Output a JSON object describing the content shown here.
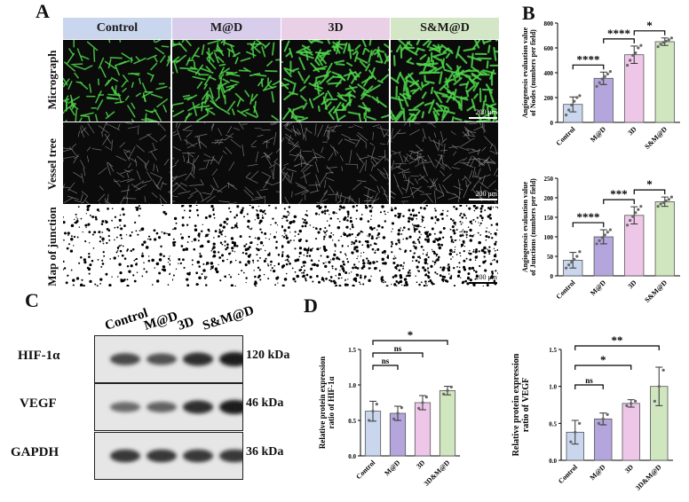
{
  "panels": {
    "a": "A",
    "b": "B",
    "c": "C",
    "d": "D"
  },
  "panel_a": {
    "headers": [
      {
        "label": "Control",
        "color": "#c9d6ee"
      },
      {
        "label": "M@D",
        "color": "#d8cdea"
      },
      {
        "label": "3D",
        "color": "#ead0e6"
      },
      {
        "label": "S&M@D",
        "color": "#d3e7c6"
      }
    ],
    "rows": [
      "Micrograph",
      "Vessel tree",
      "Map of junction"
    ],
    "scale_label": "200 μm",
    "densities": [
      0.45,
      0.6,
      0.85,
      1.0
    ]
  },
  "panel_c": {
    "lanes": [
      "Control",
      "M@D",
      "3D",
      "S&M@D"
    ],
    "proteins": [
      {
        "name": "HIF-1α",
        "kda": "120 kDa",
        "intensity": [
          0.75,
          0.7,
          0.9,
          1.0
        ]
      },
      {
        "name": "VEGF",
        "kda": "46 kDa",
        "intensity": [
          0.55,
          0.6,
          0.9,
          1.0
        ]
      },
      {
        "name": "GAPDH",
        "kda": "36 kDa",
        "intensity": [
          0.85,
          0.85,
          0.85,
          0.85
        ]
      }
    ]
  },
  "chart_data": [
    {
      "type": "bar",
      "panel": "B",
      "categories": [
        "Control",
        "M@D",
        "3D",
        "S&M@D"
      ],
      "values": [
        145,
        355,
        545,
        650
      ],
      "errors": [
        60,
        50,
        70,
        30
      ],
      "points": [
        [
          60,
          100,
          140,
          170,
          200,
          215
        ],
        [
          290,
          320,
          350,
          370,
          390,
          410
        ],
        [
          460,
          500,
          540,
          560,
          600,
          620
        ],
        [
          610,
          630,
          645,
          655,
          665,
          680
        ]
      ],
      "ylabel": "Angiogenesis evaluation value of Nodes (numbers per field)",
      "ylim": [
        0,
        800
      ],
      "yticks": [
        0,
        200,
        400,
        600,
        800
      ],
      "colors": [
        "#c9d6ee",
        "#b4a6dc",
        "#eec6e8",
        "#cfe6bf"
      ],
      "significance": [
        {
          "from": 0,
          "to": 1,
          "label": "****"
        },
        {
          "from": 1,
          "to": 2,
          "label": "****"
        },
        {
          "from": 2,
          "to": 3,
          "label": "*"
        }
      ]
    },
    {
      "type": "bar",
      "panel": "B",
      "categories": [
        "Control",
        "M@D",
        "3D",
        "S&M@D"
      ],
      "values": [
        40,
        100,
        155,
        190
      ],
      "errors": [
        20,
        18,
        22,
        12
      ],
      "points": [
        [
          20,
          28,
          35,
          42,
          50,
          62
        ],
        [
          82,
          90,
          98,
          105,
          112,
          118
        ],
        [
          130,
          142,
          152,
          162,
          170,
          178
        ],
        [
          178,
          184,
          188,
          192,
          196,
          202
        ]
      ],
      "ylabel": "Angiogenesis evaluation value of Junctions (numbers per field)",
      "ylim": [
        0,
        250
      ],
      "yticks": [
        0,
        50,
        100,
        150,
        200,
        250
      ],
      "colors": [
        "#c9d6ee",
        "#b4a6dc",
        "#eec6e8",
        "#cfe6bf"
      ],
      "significance": [
        {
          "from": 0,
          "to": 1,
          "label": "****"
        },
        {
          "from": 1,
          "to": 2,
          "label": "***"
        },
        {
          "from": 2,
          "to": 3,
          "label": "*"
        }
      ]
    },
    {
      "type": "bar",
      "panel": "D",
      "categories": [
        "Control",
        "M@D",
        "3D",
        "3D&M@D"
      ],
      "values": [
        0.63,
        0.6,
        0.75,
        0.92
      ],
      "errors": [
        0.14,
        0.1,
        0.1,
        0.06
      ],
      "points": [
        [
          0.5,
          0.63,
          0.73
        ],
        [
          0.52,
          0.6,
          0.68
        ],
        [
          0.67,
          0.75,
          0.83
        ],
        [
          0.87,
          0.92,
          0.97
        ]
      ],
      "ylabel": "Relative protein expression ratio of HIF-1α",
      "ylim": [
        0,
        1.5
      ],
      "yticks": [
        0.0,
        0.5,
        1.0,
        1.5
      ],
      "colors": [
        "#c9d6ee",
        "#b4a6dc",
        "#eec6e8",
        "#cfe6bf"
      ],
      "significance": [
        {
          "from": 0,
          "to": 1,
          "label": "ns",
          "level": 0
        },
        {
          "from": 0,
          "to": 2,
          "label": "ns",
          "level": 1
        },
        {
          "from": 0,
          "to": 3,
          "label": "*",
          "level": 2
        }
      ]
    },
    {
      "type": "bar",
      "panel": "D",
      "categories": [
        "Control",
        "M@D",
        "3D",
        "3D&M@D"
      ],
      "values": [
        0.38,
        0.56,
        0.77,
        1.0
      ],
      "errors": [
        0.16,
        0.08,
        0.05,
        0.26
      ],
      "points": [
        [
          0.25,
          0.38,
          0.5
        ],
        [
          0.5,
          0.56,
          0.62
        ],
        [
          0.74,
          0.77,
          0.8
        ],
        [
          0.8,
          1.0,
          1.22
        ]
      ],
      "ylabel": "Relative protein expression ratio of VEGF",
      "ylim": [
        0,
        1.5
      ],
      "yticks": [
        0.0,
        0.5,
        1.0,
        1.5
      ],
      "colors": [
        "#c9d6ee",
        "#b4a6dc",
        "#eec6e8",
        "#cfe6bf"
      ],
      "significance": [
        {
          "from": 0,
          "to": 1,
          "label": "ns",
          "level": 0
        },
        {
          "from": 0,
          "to": 2,
          "label": "*",
          "level": 1
        },
        {
          "from": 0,
          "to": 3,
          "label": "**",
          "level": 2
        }
      ]
    }
  ]
}
